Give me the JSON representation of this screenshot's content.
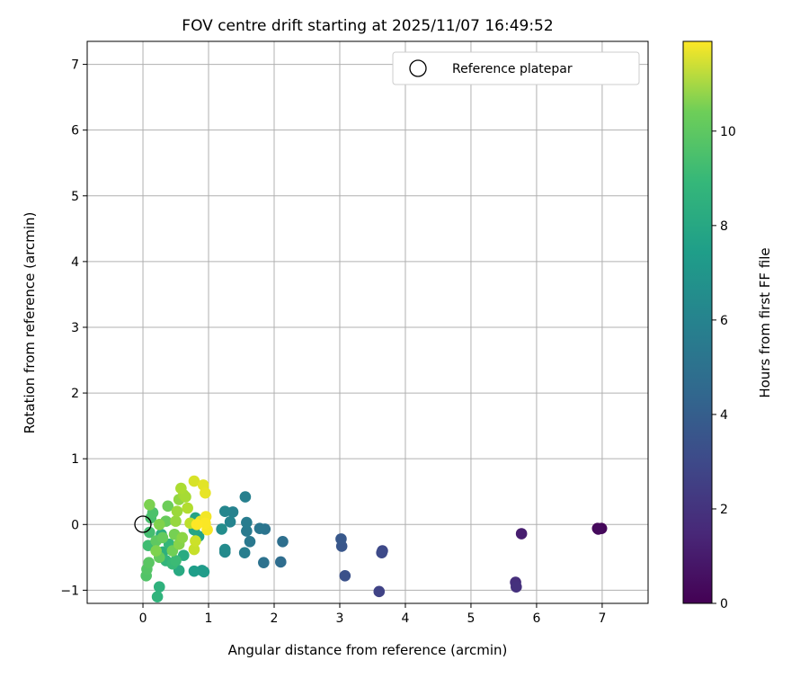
{
  "chart_data": {
    "type": "scatter",
    "title": "FOV centre drift starting at 2025/11/07 16:49:52",
    "xlabel": "Angular distance from reference (arcmin)",
    "ylabel": "Rotation from reference (arcmin)",
    "xlim": [
      -0.85,
      7.7
    ],
    "ylim": [
      -1.2,
      7.35
    ],
    "xticks": [
      0,
      1,
      2,
      3,
      4,
      5,
      6,
      7
    ],
    "yticks": [
      -1,
      0,
      1,
      2,
      3,
      4,
      5,
      6,
      7
    ],
    "grid": true,
    "legend": {
      "placement": "top-right",
      "entries": [
        "Reference platepar"
      ]
    },
    "reference_point": {
      "x": 0,
      "y": 0
    },
    "colorbar": {
      "label": "Hours from first FF file",
      "colormap": "viridis",
      "range": [
        0,
        11.9
      ],
      "ticks": [
        0,
        2,
        4,
        6,
        8,
        10
      ]
    },
    "points": [
      {
        "x": 6.93,
        "y": -0.06,
        "h": 0.1
      },
      {
        "x": 6.99,
        "y": -0.06,
        "h": 0.2
      },
      {
        "x": 6.94,
        "y": -0.07,
        "h": 0.3
      },
      {
        "x": 5.77,
        "y": -0.14,
        "h": 1.0
      },
      {
        "x": 5.68,
        "y": -0.88,
        "h": 1.6
      },
      {
        "x": 5.69,
        "y": -0.95,
        "h": 1.7
      },
      {
        "x": 3.6,
        "y": -1.02,
        "h": 2.4
      },
      {
        "x": 3.65,
        "y": -0.4,
        "h": 2.6
      },
      {
        "x": 3.64,
        "y": -0.43,
        "h": 2.7
      },
      {
        "x": 3.08,
        "y": -0.78,
        "h": 3.0
      },
      {
        "x": 3.03,
        "y": -0.33,
        "h": 3.2
      },
      {
        "x": 3.02,
        "y": -0.22,
        "h": 3.3
      },
      {
        "x": 2.1,
        "y": -0.57,
        "h": 4.2
      },
      {
        "x": 2.13,
        "y": -0.26,
        "h": 4.3
      },
      {
        "x": 1.84,
        "y": -0.58,
        "h": 4.5
      },
      {
        "x": 1.86,
        "y": -0.07,
        "h": 4.6
      },
      {
        "x": 1.78,
        "y": -0.06,
        "h": 4.7
      },
      {
        "x": 1.63,
        "y": -0.26,
        "h": 4.8
      },
      {
        "x": 1.58,
        "y": -0.1,
        "h": 4.9
      },
      {
        "x": 1.58,
        "y": 0.03,
        "h": 5.0
      },
      {
        "x": 1.55,
        "y": -0.43,
        "h": 5.1
      },
      {
        "x": 1.56,
        "y": 0.42,
        "h": 5.2
      },
      {
        "x": 1.37,
        "y": 0.19,
        "h": 5.3
      },
      {
        "x": 1.33,
        "y": 0.04,
        "h": 5.4
      },
      {
        "x": 1.25,
        "y": 0.2,
        "h": 5.5
      },
      {
        "x": 1.25,
        "y": -0.42,
        "h": 5.6
      },
      {
        "x": 1.25,
        "y": -0.38,
        "h": 5.7
      },
      {
        "x": 1.2,
        "y": -0.07,
        "h": 5.8
      },
      {
        "x": 0.9,
        "y": -0.7,
        "h": 6.4
      },
      {
        "x": 0.93,
        "y": -0.72,
        "h": 6.5
      },
      {
        "x": 0.78,
        "y": -0.71,
        "h": 6.6
      },
      {
        "x": 0.85,
        "y": -0.18,
        "h": 6.8
      },
      {
        "x": 0.8,
        "y": 0.1,
        "h": 6.9
      },
      {
        "x": 0.78,
        "y": -0.08,
        "h": 7.0
      },
      {
        "x": 0.55,
        "y": -0.7,
        "h": 7.2
      },
      {
        "x": 0.62,
        "y": -0.47,
        "h": 7.3
      },
      {
        "x": 0.28,
        "y": -0.15,
        "h": 7.4
      },
      {
        "x": 0.3,
        "y": -0.42,
        "h": 7.5
      },
      {
        "x": 0.25,
        "y": -0.95,
        "h": 7.6
      },
      {
        "x": 0.22,
        "y": -1.1,
        "h": 7.7
      },
      {
        "x": 0.35,
        "y": -0.55,
        "h": 7.8
      },
      {
        "x": 0.4,
        "y": -0.3,
        "h": 7.9
      },
      {
        "x": 0.45,
        "y": -0.6,
        "h": 8.0
      },
      {
        "x": 0.5,
        "y": -0.55,
        "h": 8.1
      },
      {
        "x": 0.08,
        "y": -0.32,
        "h": 8.2
      },
      {
        "x": 0.1,
        "y": -0.12,
        "h": 8.3
      },
      {
        "x": 0.12,
        "y": 0.1,
        "h": 8.4
      },
      {
        "x": 0.15,
        "y": 0.18,
        "h": 8.5
      },
      {
        "x": 0.05,
        "y": -0.78,
        "h": 8.6
      },
      {
        "x": 0.06,
        "y": -0.68,
        "h": 8.7
      },
      {
        "x": 0.09,
        "y": -0.58,
        "h": 8.8
      },
      {
        "x": 0.2,
        "y": -0.25,
        "h": 8.9
      },
      {
        "x": 0.25,
        "y": -0.5,
        "h": 9.0
      },
      {
        "x": 0.3,
        "y": -0.2,
        "h": 9.05
      },
      {
        "x": 0.35,
        "y": 0.05,
        "h": 9.1
      },
      {
        "x": 0.38,
        "y": 0.28,
        "h": 9.2
      },
      {
        "x": 0.45,
        "y": -0.4,
        "h": 9.3
      },
      {
        "x": 0.48,
        "y": -0.15,
        "h": 9.4
      },
      {
        "x": 0.1,
        "y": 0.3,
        "h": 9.5
      },
      {
        "x": 0.2,
        "y": -0.4,
        "h": 9.55
      },
      {
        "x": 0.25,
        "y": 0.0,
        "h": 9.6
      },
      {
        "x": 0.55,
        "y": -0.3,
        "h": 9.7
      },
      {
        "x": 0.6,
        "y": -0.2,
        "h": 9.8
      },
      {
        "x": 0.55,
        "y": 0.38,
        "h": 9.9
      },
      {
        "x": 0.5,
        "y": 0.05,
        "h": 10.0
      },
      {
        "x": 0.52,
        "y": 0.2,
        "h": 10.1
      },
      {
        "x": 0.62,
        "y": 0.45,
        "h": 10.2
      },
      {
        "x": 0.65,
        "y": 0.42,
        "h": 10.3
      },
      {
        "x": 0.58,
        "y": 0.55,
        "h": 10.4
      },
      {
        "x": 0.68,
        "y": 0.25,
        "h": 10.5
      },
      {
        "x": 0.72,
        "y": 0.02,
        "h": 10.7
      },
      {
        "x": 0.78,
        "y": -0.38,
        "h": 10.9
      },
      {
        "x": 0.8,
        "y": -0.25,
        "h": 11.0
      },
      {
        "x": 0.78,
        "y": 0.66,
        "h": 11.2
      },
      {
        "x": 0.92,
        "y": 0.6,
        "h": 11.4
      },
      {
        "x": 0.95,
        "y": 0.48,
        "h": 11.5
      },
      {
        "x": 0.88,
        "y": 0.05,
        "h": 11.6
      },
      {
        "x": 0.96,
        "y": 0.12,
        "h": 11.7
      },
      {
        "x": 0.98,
        "y": -0.08,
        "h": 11.8
      },
      {
        "x": 0.95,
        "y": 0.02,
        "h": 11.85
      },
      {
        "x": 0.82,
        "y": 0.0,
        "h": 11.9
      }
    ]
  }
}
